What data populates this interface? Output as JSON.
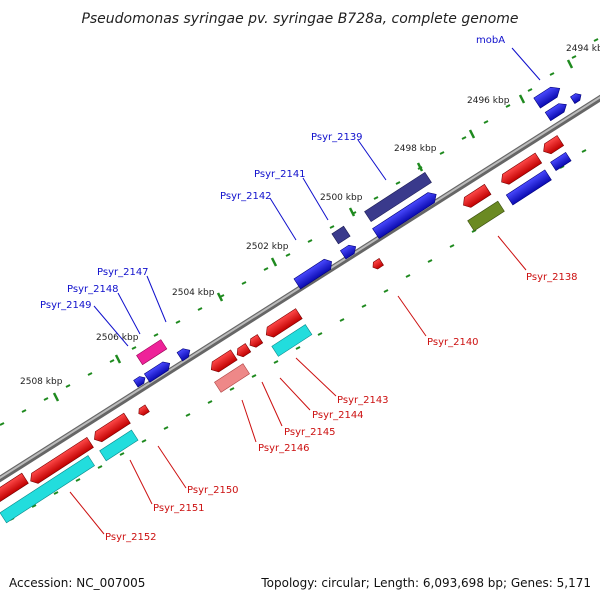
{
  "title": "Pseudomonas syringae pv. syringae B728a, complete genome",
  "footer": {
    "accession": "Accession: NC_007005",
    "summary": "Topology: circular; Length: 6,093,698 bp; Genes: 5,171"
  },
  "ticks": [
    "2494 kbp",
    "2496 kbp",
    "2498 kbp",
    "2500 kbp",
    "2502 kbp",
    "2504 kbp",
    "2506 kbp",
    "2508 kbp"
  ],
  "labels": {
    "mobA": "mobA",
    "psyr_2139": "Psyr_2139",
    "psyr_2141": "Psyr_2141",
    "psyr_2142": "Psyr_2142",
    "psyr_2147": "Psyr_2147",
    "psyr_2148": "Psyr_2148",
    "psyr_2149": "Psyr_2149",
    "psyr_2138": "Psyr_2138",
    "psyr_2140": "Psyr_2140",
    "psyr_2143": "Psyr_2143",
    "psyr_2144": "Psyr_2144",
    "psyr_2145": "Psyr_2145",
    "psyr_2146": "Psyr_2146",
    "psyr_2150": "Psyr_2150",
    "psyr_2151": "Psyr_2151",
    "psyr_2152": "Psyr_2152"
  },
  "colors": {
    "forward_cds": "#1515e0",
    "reverse_cds": "#ee1111",
    "dark_blue_gene": "#3a3a8c",
    "olive_gene": "#6b8a22",
    "cyan_gene": "#22dddd",
    "magenta_gene": "#ee2299",
    "pink_gene": "#ee8888",
    "backbone": "#888888",
    "tick_mark": "#1f8a1f"
  }
}
